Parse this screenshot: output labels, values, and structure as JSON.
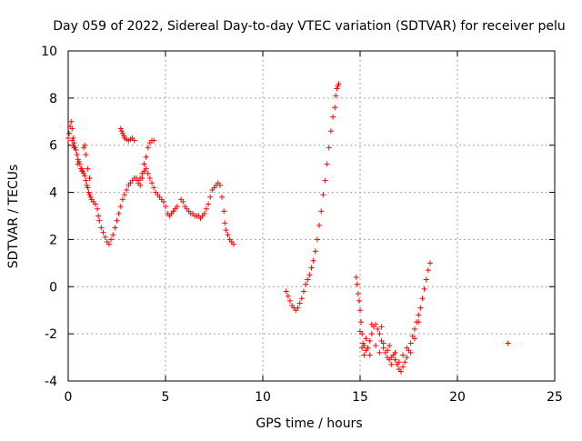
{
  "chart_data": {
    "type": "scatter",
    "title": "Day 059 of 2022, Sidereal Day-to-day VTEC variation (SDTVAR) for receiver pelu",
    "xlabel": "GPS time / hours",
    "ylabel": "SDTVAR / TECUs",
    "xlim": [
      0,
      25
    ],
    "ylim": [
      -4,
      10
    ],
    "x_ticks": [
      "0",
      "5",
      "10",
      "15",
      "20",
      "25"
    ],
    "y_ticks": [
      "-4",
      "-2",
      "0",
      "2",
      "4",
      "6",
      "8",
      "10"
    ],
    "grid": true,
    "legend": "none",
    "marker": "+",
    "marker_color": "#ff0000",
    "series": [
      {
        "points": [
          [
            0.0,
            6.3
          ],
          [
            0.05,
            6.5
          ],
          [
            0.1,
            6.8
          ],
          [
            0.15,
            7.0
          ],
          [
            0.2,
            6.7
          ],
          [
            0.25,
            6.3
          ],
          [
            0.3,
            6.1
          ],
          [
            0.35,
            5.9
          ],
          [
            0.4,
            5.8
          ],
          [
            0.45,
            5.6
          ],
          [
            0.5,
            5.4
          ],
          [
            0.55,
            5.3
          ],
          [
            0.6,
            5.2
          ],
          [
            0.65,
            5.0
          ],
          [
            0.7,
            4.9
          ],
          [
            0.75,
            4.9
          ],
          [
            0.8,
            4.8
          ],
          [
            0.85,
            4.7
          ],
          [
            0.9,
            4.5
          ],
          [
            0.95,
            4.3
          ],
          [
            1.0,
            4.2
          ],
          [
            1.05,
            4.0
          ],
          [
            1.1,
            3.9
          ],
          [
            1.15,
            3.8
          ],
          [
            1.2,
            3.7
          ],
          [
            1.3,
            3.6
          ],
          [
            1.4,
            3.5
          ],
          [
            1.5,
            3.3
          ],
          [
            1.55,
            3.0
          ],
          [
            1.6,
            2.8
          ],
          [
            1.7,
            2.5
          ],
          [
            1.8,
            2.3
          ],
          [
            1.9,
            2.1
          ],
          [
            2.0,
            1.9
          ],
          [
            2.1,
            1.8
          ],
          [
            2.2,
            2.0
          ],
          [
            2.3,
            2.2
          ],
          [
            2.4,
            2.5
          ],
          [
            2.5,
            2.8
          ],
          [
            2.6,
            3.1
          ],
          [
            2.7,
            3.4
          ],
          [
            2.8,
            3.7
          ],
          [
            2.9,
            3.9
          ],
          [
            3.0,
            4.1
          ],
          [
            3.1,
            4.3
          ],
          [
            3.2,
            4.4
          ],
          [
            3.3,
            4.5
          ],
          [
            3.4,
            4.6
          ],
          [
            3.5,
            4.6
          ],
          [
            3.6,
            4.5
          ],
          [
            3.7,
            4.6
          ],
          [
            3.8,
            4.8
          ],
          [
            3.9,
            4.9
          ],
          [
            4.0,
            5.0
          ],
          [
            4.1,
            4.8
          ],
          [
            4.2,
            4.6
          ],
          [
            4.3,
            4.4
          ],
          [
            4.4,
            4.2
          ],
          [
            4.5,
            4.0
          ],
          [
            4.6,
            3.9
          ],
          [
            4.7,
            3.8
          ],
          [
            4.8,
            3.7
          ],
          [
            4.9,
            3.6
          ],
          [
            5.0,
            3.4
          ],
          [
            5.1,
            3.1
          ],
          [
            5.2,
            3.0
          ],
          [
            5.3,
            3.1
          ],
          [
            5.4,
            3.2
          ],
          [
            5.5,
            3.3
          ],
          [
            5.6,
            3.4
          ],
          [
            0.2,
            6.2
          ],
          [
            0.25,
            6.0
          ],
          [
            0.3,
            5.9
          ],
          [
            0.5,
            5.2
          ],
          [
            0.7,
            5.0
          ],
          [
            0.8,
            5.9
          ],
          [
            0.85,
            6.0
          ],
          [
            0.9,
            5.6
          ],
          [
            1.0,
            5.0
          ],
          [
            1.1,
            4.6
          ],
          [
            2.7,
            6.7
          ],
          [
            2.75,
            6.6
          ],
          [
            2.8,
            6.5
          ],
          [
            2.85,
            6.4
          ],
          [
            2.9,
            6.3
          ],
          [
            3.0,
            6.25
          ],
          [
            3.1,
            6.2
          ],
          [
            3.2,
            6.25
          ],
          [
            3.3,
            6.3
          ],
          [
            3.4,
            6.2
          ],
          [
            3.6,
            4.4
          ],
          [
            3.7,
            4.3
          ],
          [
            3.8,
            4.6
          ],
          [
            3.9,
            5.2
          ],
          [
            4.0,
            5.5
          ],
          [
            4.1,
            5.9
          ],
          [
            4.2,
            6.1
          ],
          [
            4.3,
            6.2
          ],
          [
            4.4,
            6.2
          ],
          [
            5.8,
            3.7
          ],
          [
            5.9,
            3.6
          ],
          [
            6.0,
            3.4
          ],
          [
            6.1,
            3.3
          ],
          [
            6.2,
            3.2
          ],
          [
            6.3,
            3.1
          ],
          [
            6.4,
            3.1
          ],
          [
            6.5,
            3.0
          ],
          [
            6.6,
            3.0
          ],
          [
            6.7,
            3.0
          ],
          [
            6.8,
            2.9
          ],
          [
            6.9,
            3.0
          ],
          [
            7.0,
            3.1
          ],
          [
            7.1,
            3.3
          ],
          [
            7.2,
            3.5
          ],
          [
            7.3,
            3.8
          ],
          [
            7.4,
            4.1
          ],
          [
            7.5,
            4.2
          ],
          [
            7.6,
            4.3
          ],
          [
            7.7,
            4.4
          ],
          [
            7.8,
            4.3
          ],
          [
            7.9,
            3.8
          ],
          [
            8.0,
            3.2
          ],
          [
            8.05,
            2.7
          ],
          [
            8.1,
            2.4
          ],
          [
            8.2,
            2.2
          ],
          [
            8.3,
            2.0
          ],
          [
            8.4,
            1.9
          ],
          [
            8.5,
            1.8
          ],
          [
            11.2,
            -0.2
          ],
          [
            11.3,
            -0.4
          ],
          [
            11.4,
            -0.6
          ],
          [
            11.5,
            -0.8
          ],
          [
            11.6,
            -0.9
          ],
          [
            11.7,
            -1.0
          ],
          [
            11.8,
            -0.9
          ],
          [
            11.9,
            -0.7
          ],
          [
            12.0,
            -0.5
          ],
          [
            12.1,
            -0.2
          ],
          [
            12.2,
            0.1
          ],
          [
            12.3,
            0.3
          ],
          [
            12.4,
            0.5
          ],
          [
            12.5,
            0.8
          ],
          [
            12.6,
            1.1
          ],
          [
            12.7,
            1.5
          ],
          [
            12.8,
            2.0
          ],
          [
            12.9,
            2.6
          ],
          [
            13.0,
            3.2
          ],
          [
            13.1,
            3.9
          ],
          [
            13.2,
            4.5
          ],
          [
            13.3,
            5.2
          ],
          [
            13.4,
            5.9
          ],
          [
            13.5,
            6.6
          ],
          [
            13.6,
            7.2
          ],
          [
            13.7,
            7.6
          ],
          [
            13.75,
            8.1
          ],
          [
            13.8,
            8.4
          ],
          [
            13.85,
            8.5
          ],
          [
            13.9,
            8.6
          ],
          [
            14.8,
            0.4
          ],
          [
            14.85,
            0.1
          ],
          [
            14.9,
            -0.3
          ],
          [
            14.95,
            -0.6
          ],
          [
            15.0,
            -1.0
          ],
          [
            15.05,
            -1.5
          ],
          [
            15.1,
            -2.0
          ],
          [
            15.15,
            -2.4
          ],
          [
            15.2,
            -2.5
          ],
          [
            15.3,
            -2.7
          ],
          [
            15.4,
            -2.6
          ],
          [
            15.5,
            -2.3
          ],
          [
            15.6,
            -2.0
          ],
          [
            15.7,
            -1.7
          ],
          [
            15.8,
            -1.6
          ],
          [
            15.9,
            -1.8
          ],
          [
            16.0,
            -2.0
          ],
          [
            16.1,
            -2.3
          ],
          [
            16.2,
            -2.6
          ],
          [
            16.3,
            -2.8
          ],
          [
            16.4,
            -3.0
          ],
          [
            16.5,
            -3.1
          ],
          [
            16.6,
            -3.0
          ],
          [
            16.7,
            -2.9
          ],
          [
            16.8,
            -3.1
          ],
          [
            16.9,
            -3.3
          ],
          [
            17.0,
            -3.5
          ],
          [
            17.1,
            -3.6
          ],
          [
            17.2,
            -3.4
          ],
          [
            17.3,
            -3.2
          ],
          [
            17.4,
            -3.0
          ],
          [
            17.5,
            -2.7
          ],
          [
            17.6,
            -2.4
          ],
          [
            17.7,
            -2.1
          ],
          [
            17.8,
            -1.8
          ],
          [
            17.9,
            -1.5
          ],
          [
            18.0,
            -1.2
          ],
          [
            18.1,
            -0.9
          ],
          [
            18.2,
            -0.5
          ],
          [
            18.3,
            -0.1
          ],
          [
            18.4,
            0.3
          ],
          [
            18.5,
            0.7
          ],
          [
            18.6,
            1.0
          ],
          [
            15.0,
            -1.9
          ],
          [
            15.1,
            -2.6
          ],
          [
            15.2,
            -2.9
          ],
          [
            15.5,
            -2.9
          ],
          [
            15.8,
            -2.5
          ],
          [
            16.0,
            -2.8
          ],
          [
            16.2,
            -2.4
          ],
          [
            16.4,
            -2.7
          ],
          [
            16.6,
            -3.3
          ],
          [
            16.8,
            -2.8
          ],
          [
            17.0,
            -3.2
          ],
          [
            17.2,
            -2.9
          ],
          [
            17.4,
            -2.6
          ],
          [
            17.6,
            -2.8
          ],
          [
            17.8,
            -2.2
          ],
          [
            18.0,
            -1.5
          ],
          [
            15.3,
            -2.2
          ],
          [
            15.6,
            -1.6
          ],
          [
            16.1,
            -1.7
          ],
          [
            16.5,
            -2.5
          ],
          [
            22.6,
            -2.4
          ]
        ]
      }
    ]
  }
}
